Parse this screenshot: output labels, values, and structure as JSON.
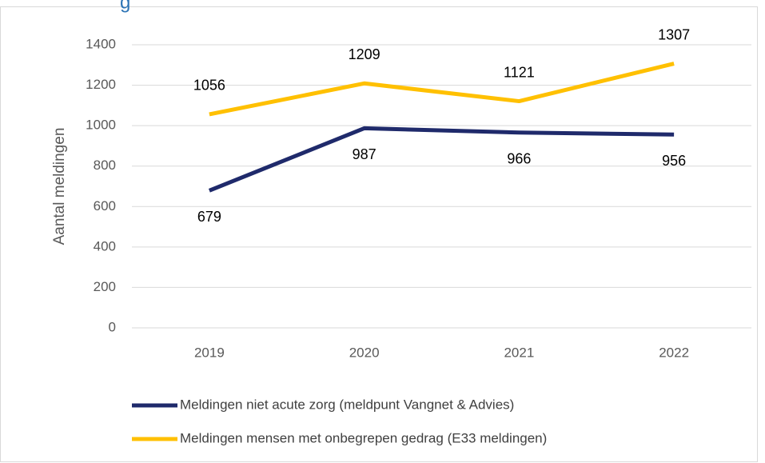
{
  "chart_data": {
    "type": "line",
    "title": "g",
    "y_label": "Aantal meldingen",
    "categories": [
      "2019",
      "2020",
      "2021",
      "2022"
    ],
    "series": [
      {
        "name": "Meldingen niet acute zorg (meldpunt Vangnet & Advies)",
        "color": "#1f2a6b",
        "values": [
          679,
          987,
          966,
          956
        ],
        "label_position": "below"
      },
      {
        "name": "Meldingen mensen met onbegrepen gedrag (E33 meldingen)",
        "color": "#ffc000",
        "values": [
          1056,
          1209,
          1121,
          1307
        ],
        "label_position": "above"
      }
    ],
    "ylim": [
      0,
      1400
    ],
    "yticks": [
      0,
      200,
      400,
      600,
      800,
      1000,
      1200,
      1400
    ],
    "grid": true,
    "legend": "bottom"
  }
}
